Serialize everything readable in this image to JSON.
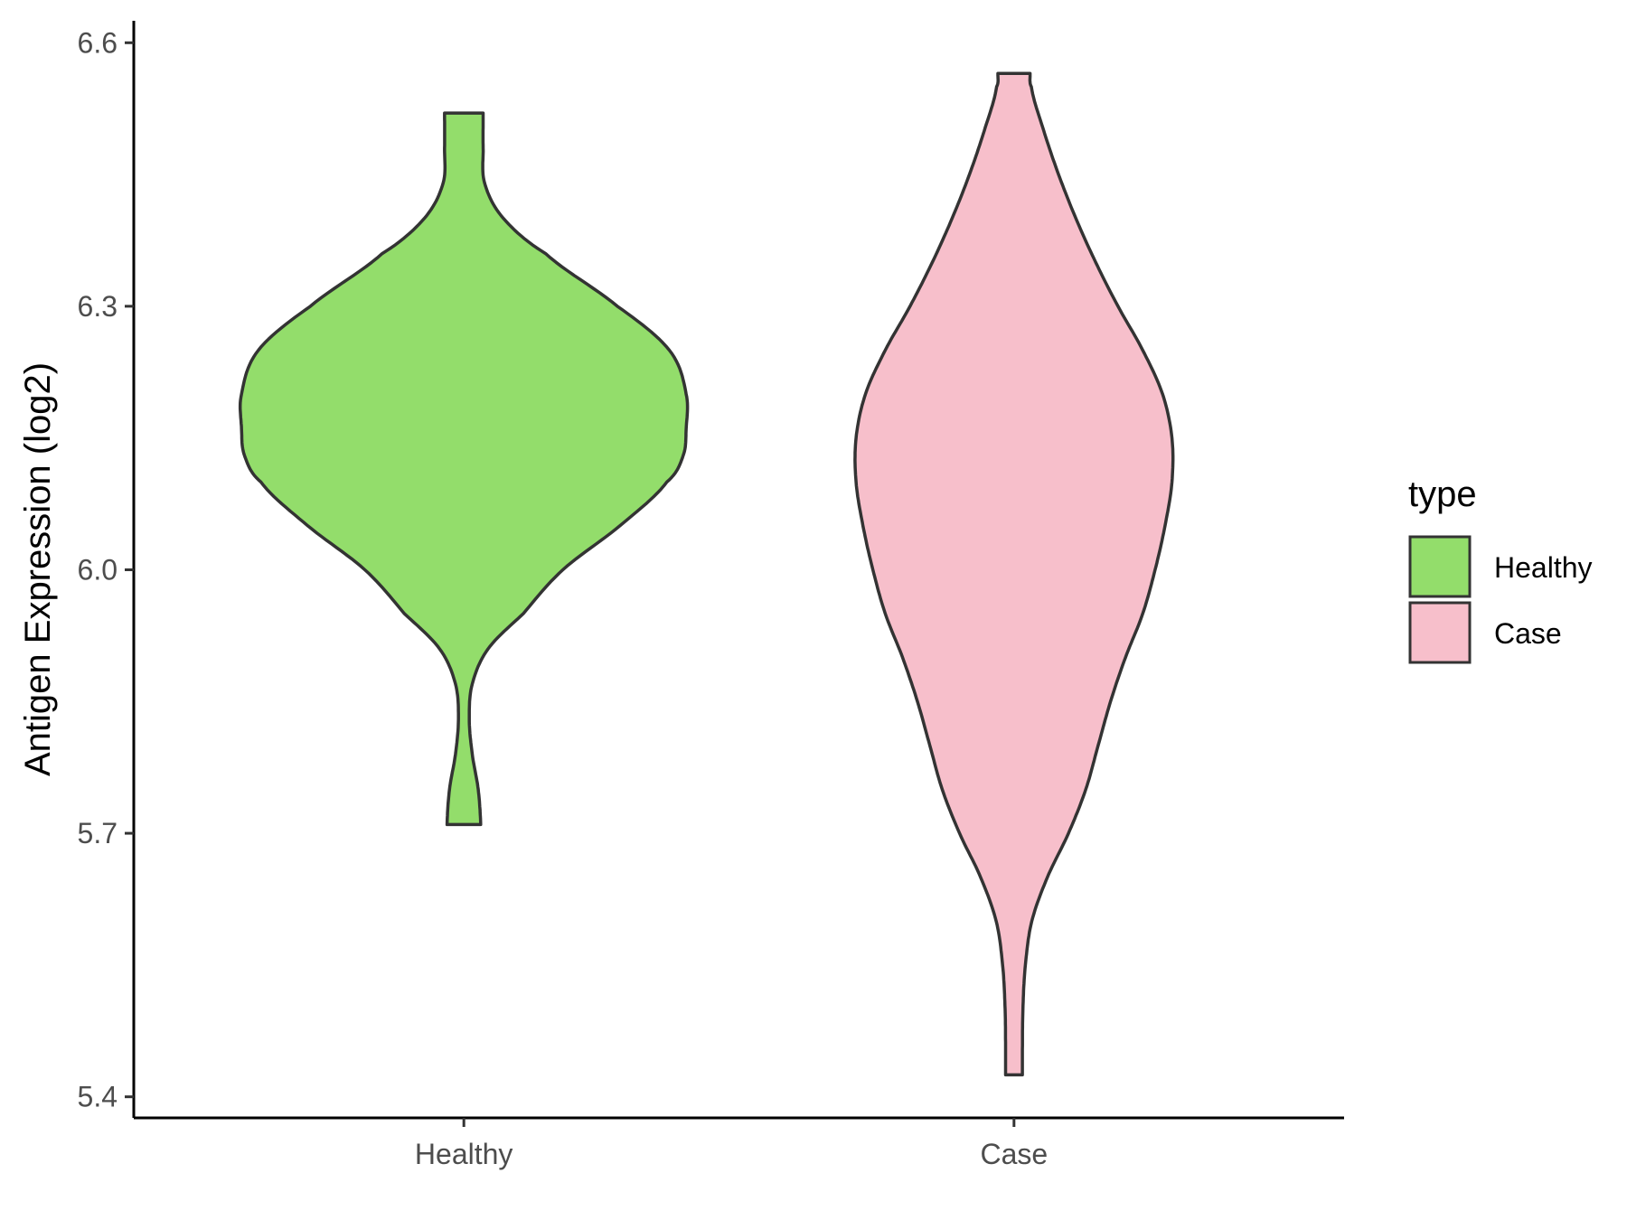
{
  "chart_data": {
    "type": "violin",
    "title": "",
    "xlabel": "",
    "ylabel": "Antigen Expression (log2)",
    "ylim": [
      5.376,
      6.625
    ],
    "y_ticks": [
      "5.4",
      "5.7",
      "6.0",
      "6.3",
      "6.6"
    ],
    "categories": [
      "Healthy",
      "Case"
    ],
    "grid": false,
    "legend": {
      "title": "type",
      "placement": "right",
      "entries": [
        {
          "label": "Healthy",
          "color": "#93DD6B"
        },
        {
          "label": "Case",
          "color": "#F7BFCB"
        }
      ]
    },
    "series": [
      {
        "category": "Healthy",
        "color": "#93DD6B",
        "min": 5.71,
        "max": 6.52,
        "density_profile": [
          [
            5.71,
            0.068
          ],
          [
            5.75,
            0.058
          ],
          [
            5.79,
            0.034
          ],
          [
            5.83,
            0.022
          ],
          [
            5.87,
            0.034
          ],
          [
            5.91,
            0.098
          ],
          [
            5.95,
            0.24
          ],
          [
            6.0,
            0.4
          ],
          [
            6.05,
            0.63
          ],
          [
            6.1,
            0.82
          ],
          [
            6.13,
            0.886
          ],
          [
            6.16,
            0.898
          ],
          [
            6.2,
            0.898
          ],
          [
            6.25,
            0.83
          ],
          [
            6.3,
            0.62
          ],
          [
            6.36,
            0.33
          ],
          [
            6.4,
            0.16
          ],
          [
            6.44,
            0.084
          ],
          [
            6.48,
            0.078
          ],
          [
            6.52,
            0.078
          ]
        ]
      },
      {
        "category": "Case",
        "color": "#F7BFCB",
        "min": 5.425,
        "max": 6.565,
        "density_profile": [
          [
            5.425,
            0.034
          ],
          [
            5.45,
            0.034
          ],
          [
            5.5,
            0.036
          ],
          [
            5.55,
            0.046
          ],
          [
            5.6,
            0.072
          ],
          [
            5.65,
            0.135
          ],
          [
            5.7,
            0.22
          ],
          [
            5.75,
            0.29
          ],
          [
            5.8,
            0.34
          ],
          [
            5.85,
            0.39
          ],
          [
            5.9,
            0.45
          ],
          [
            5.95,
            0.52
          ],
          [
            6.0,
            0.57
          ],
          [
            6.05,
            0.61
          ],
          [
            6.1,
            0.638
          ],
          [
            6.15,
            0.638
          ],
          [
            6.2,
            0.6
          ],
          [
            6.25,
            0.52
          ],
          [
            6.3,
            0.42
          ],
          [
            6.35,
            0.33
          ],
          [
            6.4,
            0.25
          ],
          [
            6.45,
            0.18
          ],
          [
            6.5,
            0.12
          ],
          [
            6.55,
            0.07
          ],
          [
            6.565,
            0.065
          ]
        ]
      }
    ]
  }
}
